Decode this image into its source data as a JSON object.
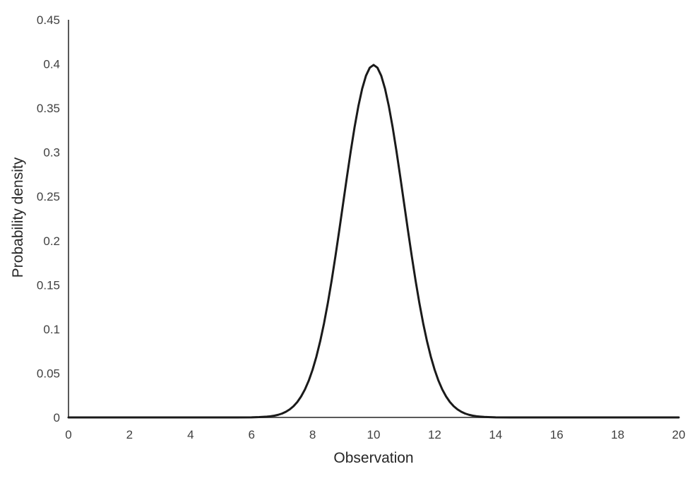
{
  "chart_data": {
    "type": "line",
    "title": "",
    "xlabel": "Observation",
    "ylabel": "Probability density",
    "xlim": [
      0,
      20
    ],
    "ylim": [
      0,
      0.45
    ],
    "grid": false,
    "legend": "none",
    "x_ticks": [
      0,
      2,
      4,
      6,
      8,
      10,
      12,
      14,
      16,
      18,
      20
    ],
    "x_tick_labels": [
      "0",
      "2",
      "4",
      "6",
      "8",
      "10",
      "12",
      "14",
      "16",
      "18",
      "20"
    ],
    "y_ticks": [
      0,
      0.05,
      0.1,
      0.15,
      0.2,
      0.25,
      0.3,
      0.35,
      0.4,
      0.45
    ],
    "y_tick_labels": [
      "0",
      "0.05",
      "0.1",
      "0.15",
      "0.2",
      "0.25",
      "0.3",
      "0.35",
      "0.4",
      "0.45"
    ],
    "series": [
      {
        "color": "#1a1a1a",
        "line_width": 3,
        "points": [
          [
            0,
            0
          ],
          [
            1,
            0
          ],
          [
            2,
            0
          ],
          [
            3,
            0
          ],
          [
            4,
            0
          ],
          [
            5,
            0
          ],
          [
            5.5,
            0
          ],
          [
            6,
            0.0001
          ],
          [
            6.25,
            0.0004
          ],
          [
            6.5,
            0.0009
          ],
          [
            6.625,
            0.0013
          ],
          [
            6.75,
            0.002
          ],
          [
            6.875,
            0.003
          ],
          [
            7,
            0.0044
          ],
          [
            7.125,
            0.0064
          ],
          [
            7.25,
            0.0091
          ],
          [
            7.375,
            0.0127
          ],
          [
            7.5,
            0.0175
          ],
          [
            7.625,
            0.0238
          ],
          [
            7.75,
            0.0317
          ],
          [
            7.875,
            0.0417
          ],
          [
            8,
            0.054
          ],
          [
            8.125,
            0.0688
          ],
          [
            8.25,
            0.0863
          ],
          [
            8.375,
            0.1065
          ],
          [
            8.5,
            0.1295
          ],
          [
            8.625,
            0.155
          ],
          [
            8.75,
            0.1827
          ],
          [
            8.875,
            0.2119
          ],
          [
            9,
            0.242
          ],
          [
            9.125,
            0.272
          ],
          [
            9.25,
            0.3011
          ],
          [
            9.375,
            0.3282
          ],
          [
            9.5,
            0.3521
          ],
          [
            9.625,
            0.3719
          ],
          [
            9.75,
            0.3867
          ],
          [
            9.875,
            0.3958
          ],
          [
            10,
            0.3989
          ],
          [
            10.125,
            0.3958
          ],
          [
            10.25,
            0.3867
          ],
          [
            10.375,
            0.3719
          ],
          [
            10.5,
            0.3521
          ],
          [
            10.625,
            0.3282
          ],
          [
            10.75,
            0.3011
          ],
          [
            10.875,
            0.272
          ],
          [
            11,
            0.242
          ],
          [
            11.125,
            0.2119
          ],
          [
            11.25,
            0.1827
          ],
          [
            11.375,
            0.155
          ],
          [
            11.5,
            0.1295
          ],
          [
            11.625,
            0.1065
          ],
          [
            11.75,
            0.0863
          ],
          [
            11.875,
            0.0688
          ],
          [
            12,
            0.054
          ],
          [
            12.125,
            0.0417
          ],
          [
            12.25,
            0.0317
          ],
          [
            12.375,
            0.0238
          ],
          [
            12.5,
            0.0175
          ],
          [
            12.625,
            0.0127
          ],
          [
            12.75,
            0.0091
          ],
          [
            12.875,
            0.0064
          ],
          [
            13,
            0.0044
          ],
          [
            13.125,
            0.003
          ],
          [
            13.25,
            0.002
          ],
          [
            13.375,
            0.0013
          ],
          [
            13.5,
            0.0009
          ],
          [
            13.625,
            0.0006
          ],
          [
            13.75,
            0.0004
          ],
          [
            14,
            0.0001
          ],
          [
            14.5,
            0
          ],
          [
            15,
            0
          ],
          [
            16,
            0
          ],
          [
            17,
            0
          ],
          [
            18,
            0
          ],
          [
            19,
            0
          ],
          [
            20,
            0
          ]
        ]
      }
    ],
    "colors": {
      "curve": "#1a1a1a",
      "axis_line": "#595959",
      "tick_label": "#404040",
      "axis_title": "#262626",
      "background": "#ffffff"
    }
  }
}
